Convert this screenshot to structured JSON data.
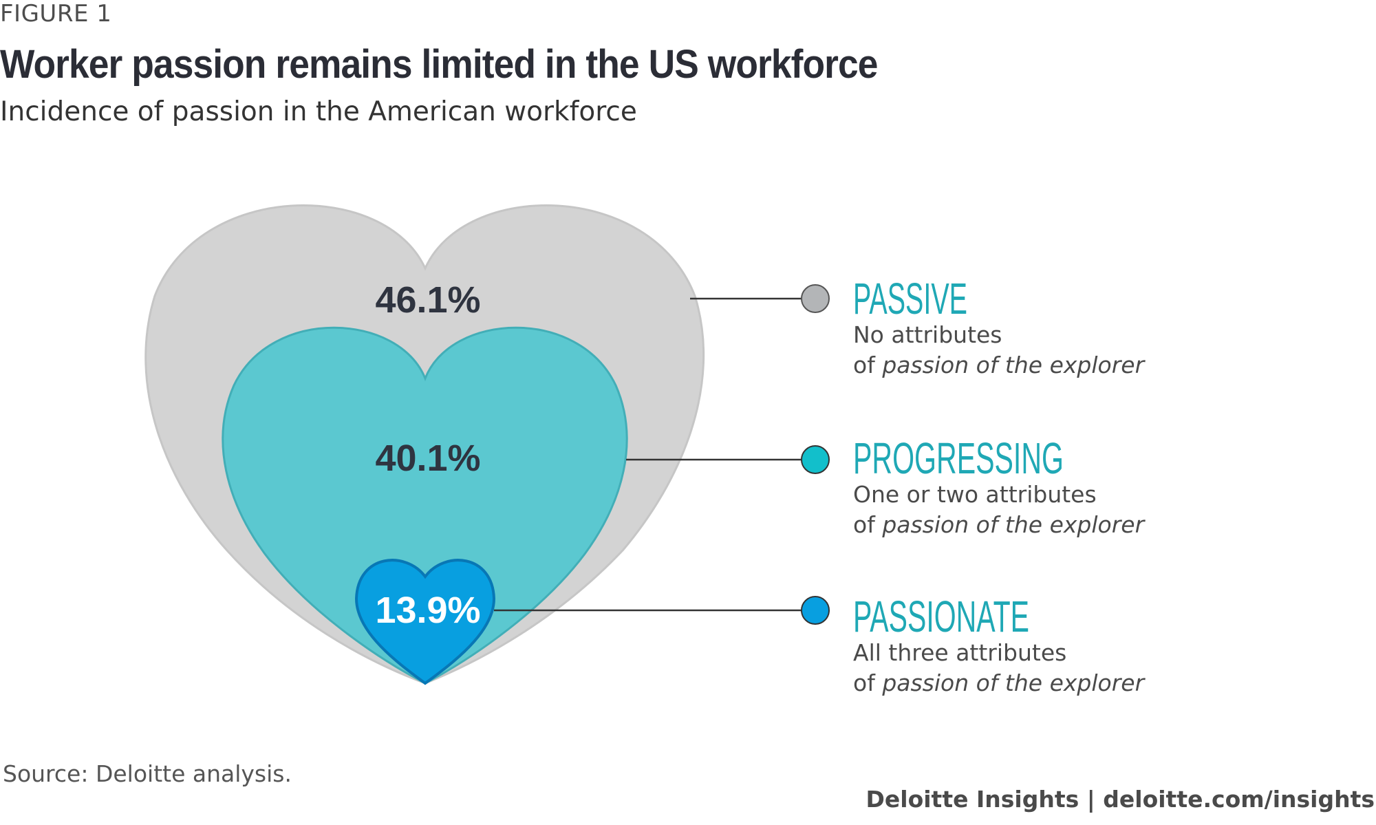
{
  "header": {
    "figure_label": "FIGURE 1",
    "title": "Worker passion remains limited in the US workforce",
    "subtitle": "Incidence of passion in the American workforce"
  },
  "chart_data": {
    "type": "nested-heart-proportion",
    "title": "Worker passion remains limited in the US workforce",
    "subtitle": "Incidence of passion in the American workforce",
    "categories": [
      "PASSIVE",
      "PROGRESSING",
      "PASSIONATE"
    ],
    "values": [
      46.1,
      40.1,
      13.9
    ],
    "value_labels": [
      "46.1%",
      "40.1%",
      "13.9%"
    ],
    "series": [
      {
        "name": "PASSIVE",
        "value": 46.1,
        "label": "46.1%",
        "desc_line1": "No attributes",
        "desc_prefix": "of ",
        "desc_italic": "passion of the explorer",
        "color": "#d3d3d3",
        "marker_color": "#b3b5b7"
      },
      {
        "name": "PROGRESSING",
        "value": 40.1,
        "label": "40.1%",
        "desc_line1": "One or two attributes",
        "desc_prefix": "of ",
        "desc_italic": "passion of the explorer",
        "color": "#5bc8d0",
        "marker_color": "#12bfcb"
      },
      {
        "name": "PASSIONATE",
        "value": 13.9,
        "label": "13.9%",
        "desc_line1": "All three attributes",
        "desc_prefix": "of ",
        "desc_italic": "passion of the explorer",
        "color": "#089fe0",
        "marker_color": "#089fe0"
      }
    ],
    "legend_position": "right"
  },
  "footer": {
    "source": "Source: Deloitte analysis.",
    "brand": "Deloitte Insights | deloitte.com/insights"
  },
  "colors": {
    "title": "#2b2d36",
    "legend_title": "#1fa8b5",
    "leader_line": "#333333",
    "percent_dark": "#2f3440",
    "percent_light": "#ffffff"
  }
}
